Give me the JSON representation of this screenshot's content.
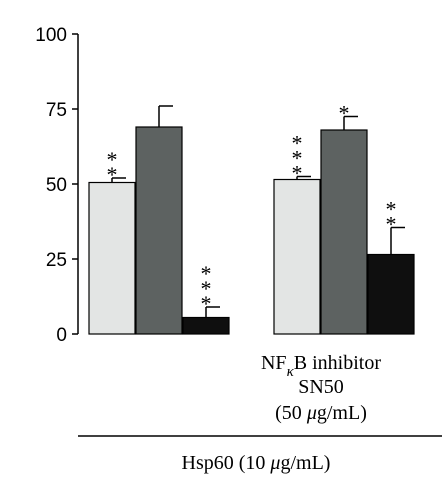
{
  "chart_data": {
    "type": "bar",
    "ylim": [
      0,
      100
    ],
    "yticks": [
      0,
      25,
      50,
      75,
      100
    ],
    "groups": [
      {
        "bars": [
          {
            "value": 50.5,
            "error": 1.5,
            "color": "#e3e5e4",
            "annotation": "**"
          },
          {
            "value": 69,
            "error": 7,
            "color": "#5d6261",
            "annotation": ""
          },
          {
            "value": 5.5,
            "error": 3.5,
            "color": "#0f0f0f",
            "annotation": "***"
          }
        ]
      },
      {
        "bars": [
          {
            "value": 51.5,
            "error": 1,
            "color": "#e3e5e4",
            "annotation": "***"
          },
          {
            "value": 68,
            "error": 4.5,
            "color": "#5d6261",
            "annotation": "*"
          },
          {
            "value": 26.5,
            "error": 9,
            "color": "#0f0f0f",
            "annotation": "**"
          }
        ]
      }
    ],
    "group2_label": {
      "line1_main": "NF",
      "line1_sub": "κ",
      "line1_rest": "B inhibitor",
      "line2": "SN50",
      "line3_pre": "(50 ",
      "line3_mu": "μ",
      "line3_post": "g/mL)"
    },
    "xlabel": {
      "pre": "Hsp60 (10 ",
      "mu": "μ",
      "post": "g/mL)"
    }
  }
}
